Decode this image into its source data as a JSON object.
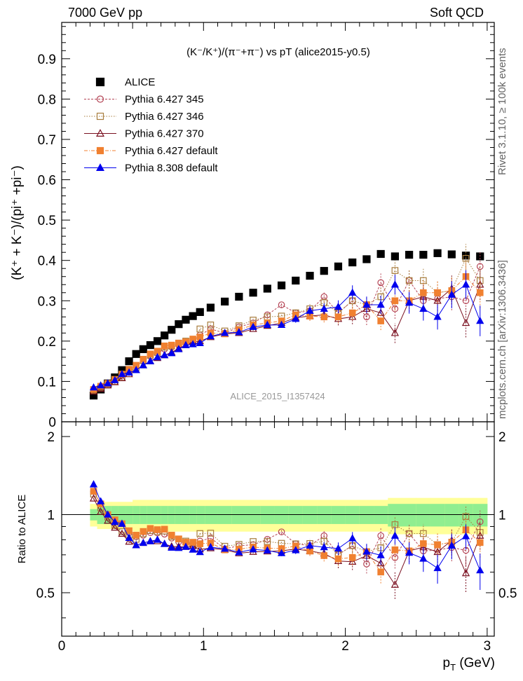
{
  "header": {
    "left": "7000 GeV pp",
    "right": "Soft QCD"
  },
  "side": {
    "rivet": "Rivet 3.1.10, ≥ 100k events",
    "mcplots": "mcplots.cern.ch [arXiv:1306.3436]"
  },
  "chart_data": [
    {
      "type": "scatter",
      "title": "(K⁻/K⁺)/(π⁻+π⁻) vs pT (alice2015-y0.5)",
      "ylabel": "(K⁺ + K⁻)/(pi⁺ +pi⁻)",
      "xlabel": "p_T (GeV)",
      "watermark": "ALICE_2015_I1357424",
      "xlim": [
        0,
        3.05
      ],
      "ylim": [
        0,
        0.99
      ],
      "yticks": [
        "0",
        "0.1",
        "0.2",
        "0.3",
        "0.4",
        "0.5",
        "0.6",
        "0.7",
        "0.8",
        "0.9"
      ],
      "x": [
        0.225,
        0.275,
        0.325,
        0.375,
        0.425,
        0.475,
        0.525,
        0.575,
        0.625,
        0.675,
        0.725,
        0.775,
        0.825,
        0.875,
        0.925,
        0.975,
        1.05,
        1.15,
        1.25,
        1.35,
        1.45,
        1.55,
        1.65,
        1.75,
        1.85,
        1.95,
        2.05,
        2.15,
        2.25,
        2.35,
        2.45,
        2.55,
        2.65,
        2.75,
        2.85,
        2.95
      ],
      "series": [
        {
          "name": "ALICE",
          "marker": "filled-square",
          "color": "#000000",
          "values": [
            0.065,
            0.08,
            0.095,
            0.11,
            0.128,
            0.15,
            0.168,
            0.18,
            0.19,
            0.2,
            0.214,
            0.228,
            0.242,
            0.253,
            0.262,
            0.272,
            0.283,
            0.298,
            0.31,
            0.32,
            0.33,
            0.338,
            0.35,
            0.362,
            0.374,
            0.385,
            0.395,
            0.403,
            0.416,
            0.41,
            0.414,
            0.414,
            0.418,
            0.415,
            0.412,
            0.41
          ]
        },
        {
          "name": "Pythia 6.427 345",
          "marker": "open-circle",
          "color": "#b44455",
          "values": [
            0.08,
            0.088,
            0.095,
            0.105,
            0.118,
            0.128,
            0.138,
            0.15,
            0.162,
            0.17,
            0.18,
            0.185,
            0.19,
            0.198,
            0.2,
            0.215,
            0.23,
            0.22,
            0.235,
            0.245,
            0.265,
            0.29,
            0.27,
            0.275,
            0.31,
            0.27,
            0.3,
            0.26,
            0.345,
            0.28,
            0.35,
            0.3,
            0.305,
            0.31,
            0.3,
            0.385
          ]
        },
        {
          "name": "Pythia 6.427 346",
          "marker": "open-square",
          "color": "#a87d3e",
          "values": [
            0.078,
            0.085,
            0.093,
            0.1,
            0.11,
            0.125,
            0.135,
            0.152,
            0.165,
            0.172,
            0.185,
            0.188,
            0.195,
            0.2,
            0.2,
            0.23,
            0.24,
            0.225,
            0.238,
            0.252,
            0.26,
            0.262,
            0.27,
            0.28,
            0.295,
            0.27,
            0.3,
            0.29,
            0.31,
            0.375,
            0.35,
            0.35,
            0.32,
            0.325,
            0.405,
            0.35
          ]
        },
        {
          "name": "Pythia 6.427 370",
          "marker": "open-triangle",
          "color": "#7a1020",
          "values": [
            0.075,
            0.082,
            0.09,
            0.098,
            0.108,
            0.118,
            0.128,
            0.14,
            0.15,
            0.158,
            0.165,
            0.172,
            0.182,
            0.19,
            0.198,
            0.2,
            0.21,
            0.218,
            0.22,
            0.23,
            0.238,
            0.245,
            0.258,
            0.262,
            0.265,
            0.255,
            0.26,
            0.28,
            0.27,
            0.22,
            0.3,
            0.31,
            0.3,
            0.33,
            0.245,
            0.34
          ]
        },
        {
          "name": "Pythia 6.427 default",
          "marker": "filled-square",
          "color": "#f08030",
          "values": [
            0.08,
            0.088,
            0.095,
            0.105,
            0.118,
            0.13,
            0.14,
            0.155,
            0.168,
            0.175,
            0.188,
            0.19,
            0.195,
            0.198,
            0.205,
            0.21,
            0.22,
            0.218,
            0.228,
            0.24,
            0.245,
            0.25,
            0.265,
            0.262,
            0.26,
            0.26,
            0.27,
            0.29,
            0.25,
            0.3,
            0.3,
            0.32,
            0.32,
            0.325,
            0.36,
            0.32
          ]
        },
        {
          "name": "Pythia 8.308 default",
          "marker": "filled-triangle",
          "color": "#0000ee",
          "values": [
            0.085,
            0.09,
            0.095,
            0.103,
            0.118,
            0.122,
            0.128,
            0.14,
            0.15,
            0.16,
            0.165,
            0.17,
            0.18,
            0.19,
            0.192,
            0.195,
            0.212,
            0.22,
            0.222,
            0.235,
            0.24,
            0.24,
            0.255,
            0.275,
            0.28,
            0.285,
            0.32,
            0.29,
            0.29,
            0.34,
            0.295,
            0.28,
            0.26,
            0.315,
            0.34,
            0.25
          ]
        }
      ]
    },
    {
      "type": "scatter",
      "ylabel": "Ratio to ALICE",
      "xlabel": "p_T (GeV)",
      "xlim": [
        0,
        3.05
      ],
      "ylim": [
        0.34,
        2.28
      ],
      "yticks_left": [
        "0.5",
        "1",
        "2"
      ],
      "xticks": [
        "0",
        "1",
        "2",
        "3"
      ],
      "reference": 1,
      "bands": {
        "stat_color": "#90ee90",
        "syst_color": "#ffff99"
      }
    }
  ]
}
